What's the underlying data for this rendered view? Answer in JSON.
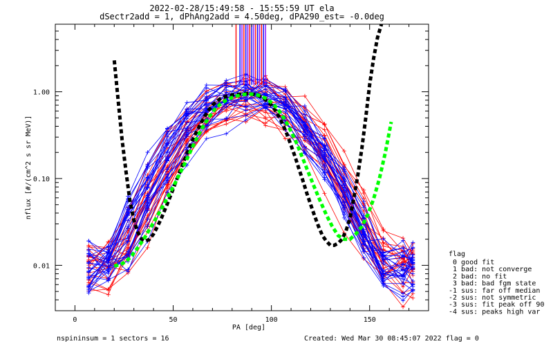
{
  "chart_data": {
    "type": "line",
    "title_line1": "2022-02-28/15:49:58 - 15:55:59 UT ela",
    "title_line2": "dSectr2add = 1, dPhAng2add = 4.50deg, dPA290_est=  -0.0deg",
    "xlabel": "PA [deg]",
    "ylabel": "nflux [#/(cm^2 s sr MeV)]",
    "xlim": [
      -10,
      180
    ],
    "ylim": [
      0.003,
      6.0
    ],
    "yscale": "log",
    "xticks": [
      0,
      50,
      100,
      150
    ],
    "xtick_labels": [
      "0",
      "50",
      "100",
      "150"
    ],
    "yticks": [
      0.01,
      0.1,
      1.0
    ],
    "ytick_labels": [
      "0.01",
      "0.10",
      "1.00"
    ],
    "grid": false,
    "colors": {
      "red_traces": "#ff0000",
      "blue_traces": "#0000ff",
      "black_fit": "#000000",
      "green_fit": "#00ff00",
      "vertical_bars": [
        "#ff0000",
        "#0000ff",
        "#8000ff"
      ]
    },
    "series": [
      {
        "style": "black-dashed",
        "x": [
          20,
          22,
          24,
          26,
          28,
          30,
          32,
          34,
          36,
          38,
          40,
          42,
          44,
          46,
          48,
          50,
          52,
          54,
          56,
          58,
          60,
          62,
          64,
          66,
          68,
          70,
          72,
          74,
          76,
          78,
          80,
          82,
          84,
          86,
          88,
          90,
          92,
          94,
          96,
          98,
          100,
          102,
          104,
          106,
          108,
          110,
          112,
          114,
          116,
          118,
          120,
          122,
          124,
          126,
          128,
          130,
          132,
          134,
          136,
          138,
          140,
          142,
          144,
          146,
          148,
          150,
          152,
          154,
          156
        ],
        "y": [
          2.3,
          0.8,
          0.28,
          0.12,
          0.055,
          0.033,
          0.024,
          0.02,
          0.019,
          0.02,
          0.023,
          0.028,
          0.035,
          0.045,
          0.058,
          0.076,
          0.1,
          0.13,
          0.17,
          0.22,
          0.28,
          0.35,
          0.43,
          0.52,
          0.61,
          0.7,
          0.77,
          0.83,
          0.87,
          0.9,
          0.92,
          0.93,
          0.94,
          0.95,
          0.95,
          0.94,
          0.92,
          0.89,
          0.84,
          0.78,
          0.7,
          0.61,
          0.51,
          0.41,
          0.32,
          0.24,
          0.18,
          0.13,
          0.095,
          0.068,
          0.05,
          0.037,
          0.028,
          0.022,
          0.019,
          0.017,
          0.017,
          0.018,
          0.02,
          0.025,
          0.035,
          0.06,
          0.11,
          0.22,
          0.5,
          1.2,
          2.4,
          4.2,
          6.0
        ]
      },
      {
        "style": "green-dashed",
        "x": [
          20,
          23,
          26,
          29,
          32,
          35,
          38,
          41,
          44,
          47,
          50,
          53,
          56,
          59,
          62,
          65,
          68,
          71,
          74,
          77,
          80,
          83,
          86,
          89,
          92,
          95,
          98,
          101,
          104,
          107,
          110,
          113,
          116,
          119,
          122,
          125,
          128,
          131,
          134,
          137,
          140,
          143,
          146,
          149,
          152,
          155,
          158,
          161
        ],
        "y": [
          0.0098,
          0.0102,
          0.011,
          0.013,
          0.016,
          0.02,
          0.026,
          0.034,
          0.045,
          0.06,
          0.08,
          0.11,
          0.15,
          0.21,
          0.29,
          0.39,
          0.5,
          0.62,
          0.72,
          0.8,
          0.86,
          0.9,
          0.93,
          0.94,
          0.93,
          0.89,
          0.82,
          0.72,
          0.6,
          0.47,
          0.35,
          0.25,
          0.17,
          0.115,
          0.078,
          0.054,
          0.038,
          0.028,
          0.022,
          0.02,
          0.02,
          0.023,
          0.028,
          0.038,
          0.058,
          0.1,
          0.2,
          0.45
        ]
      }
    ],
    "vertical_bars_x": [
      82,
      84,
      85,
      86,
      87,
      88,
      89,
      90,
      91,
      92,
      93,
      94,
      95,
      96,
      97
    ],
    "trace_sample_x": [
      7,
      17,
      27,
      37,
      47,
      57,
      67,
      77,
      87,
      97,
      107,
      117,
      127,
      137,
      147,
      157,
      167,
      172
    ],
    "legend": {
      "title": "flag",
      "items": [
        " 0 good fit",
        " 1 bad: not converge",
        " 2 bad: no fit",
        " 3 bad: bad fgm state",
        "-1 sus: far off median",
        "-2 sus: not symmetric",
        "-3 sus: fit peak off 90",
        "-4 sus: peaks high var"
      ]
    }
  },
  "footer": {
    "left": "nspininsum =  1  sectors = 16",
    "right": "Created: Wed Mar 30 08:45:07 2022   flag = 0"
  }
}
